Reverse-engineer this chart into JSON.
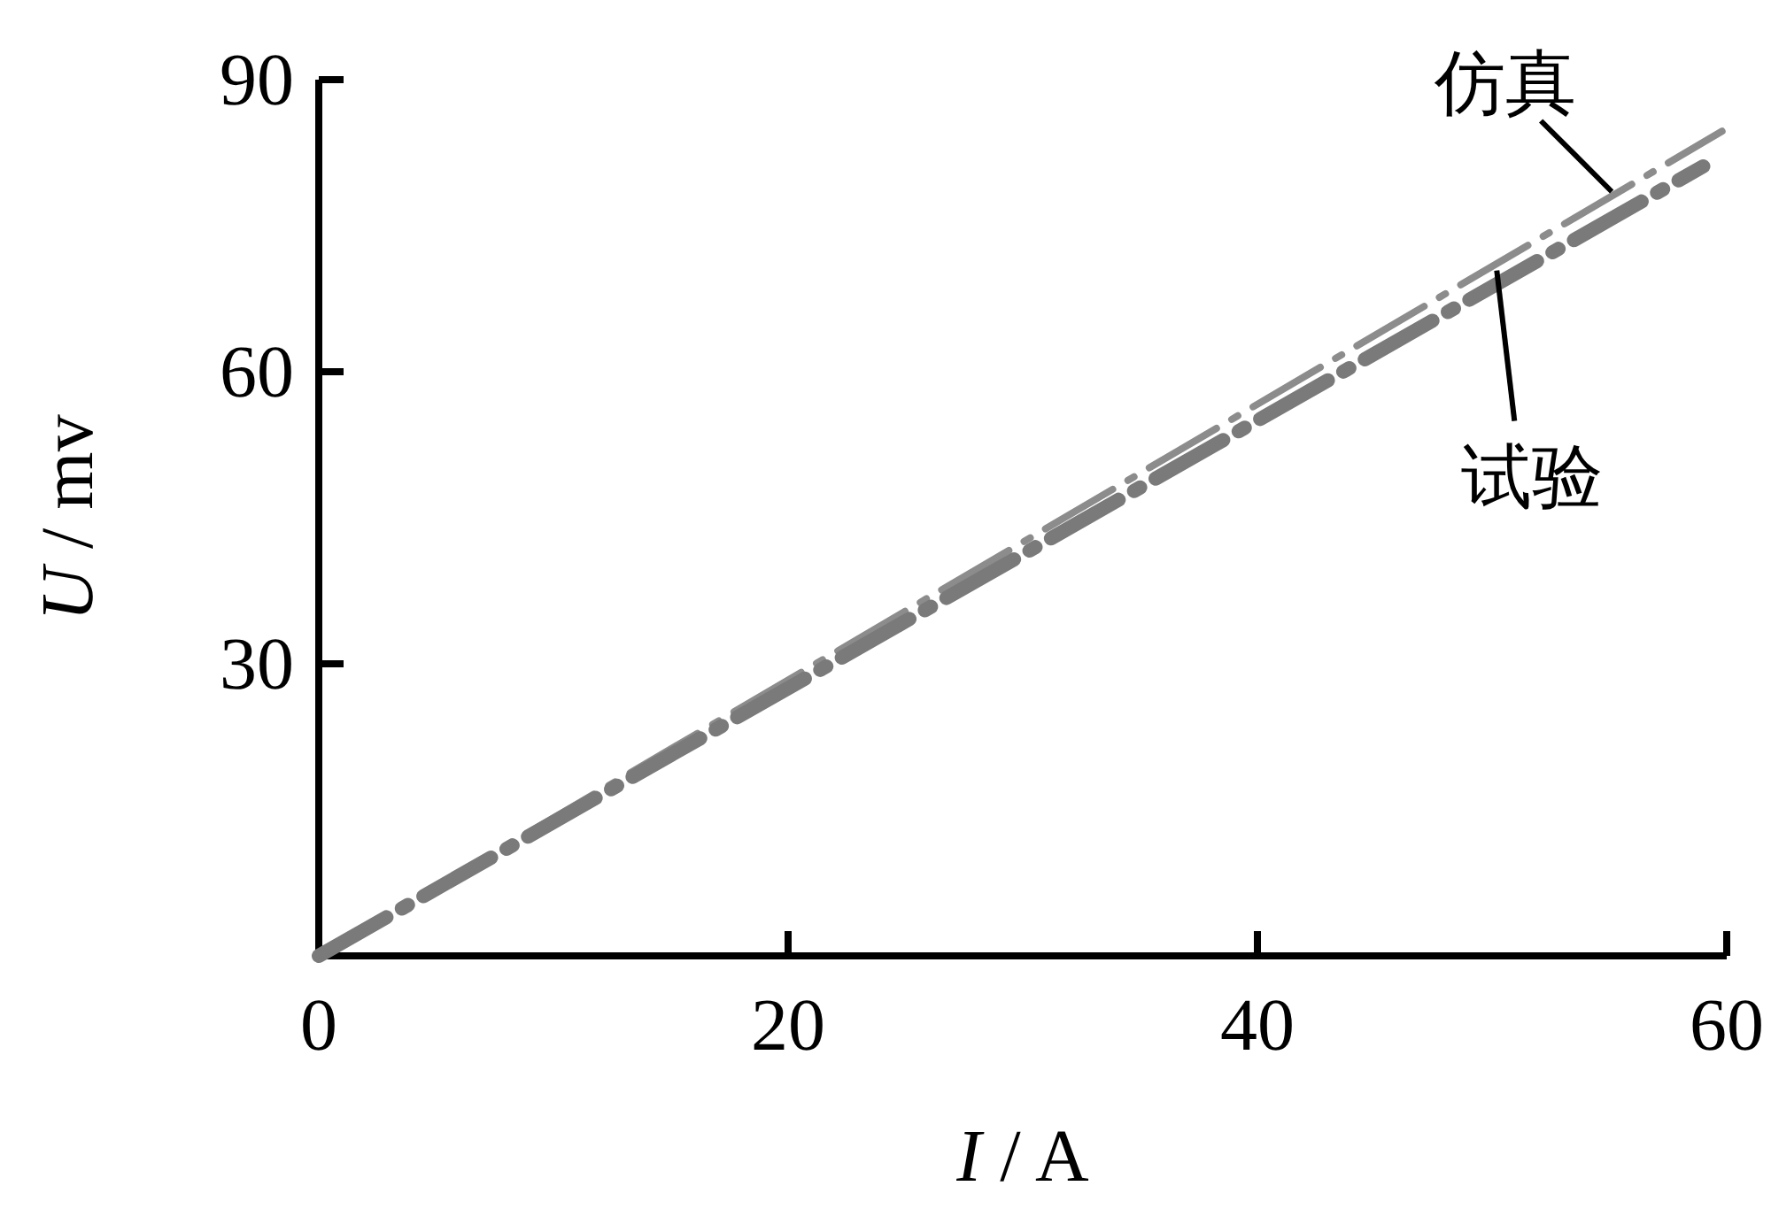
{
  "chart_data": {
    "type": "line",
    "xlabel": "I / A",
    "ylabel": "U / mv",
    "xlim": [
      0,
      60
    ],
    "ylim": [
      0,
      90
    ],
    "xticks": [
      0,
      20,
      40,
      60
    ],
    "yticks": [
      {
        "value": 0,
        "label": null
      },
      30,
      60,
      90
    ],
    "grid": false,
    "marker": "none",
    "line_style": "dashed",
    "series": [
      {
        "color": "#8c8c8c",
        "x": [
          0,
          59.8
        ],
        "values": [
          0,
          84.7
        ]
      },
      {
        "color": "#7a7a7a",
        "x": [
          0,
          59.0
        ],
        "values": [
          0,
          81.1
        ]
      }
    ],
    "annotations": [
      {
        "text": "仿真",
        "x": 55.1,
        "y": 78.5
      },
      {
        "text": "试验",
        "x": 50.2,
        "y": 70.4
      }
    ]
  }
}
